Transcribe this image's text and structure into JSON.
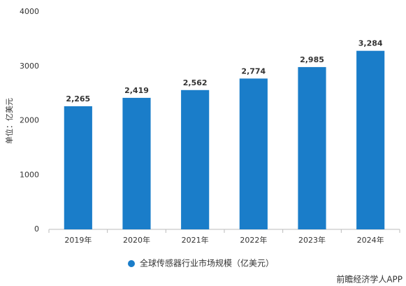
{
  "chart_data": {
    "type": "bar",
    "y_label": "单位：亿美元",
    "categories": [
      "2019年",
      "2020年",
      "2021年",
      "2022年",
      "2023年",
      "2024年"
    ],
    "series": [
      {
        "name": "全球传感器行业市场规模（亿美元）",
        "color": "#1a7dc9",
        "values": [
          2265,
          2419,
          2562,
          2774,
          2985,
          3284
        ],
        "value_labels": [
          "2,265",
          "2,419",
          "2,562",
          "2,774",
          "2,985",
          "3,284"
        ]
      }
    ],
    "ylim": [
      0,
      4000
    ],
    "yticks": [
      0,
      1000,
      2000,
      3000,
      4000
    ],
    "grid": false,
    "source": "前瞻经济学人APP"
  }
}
